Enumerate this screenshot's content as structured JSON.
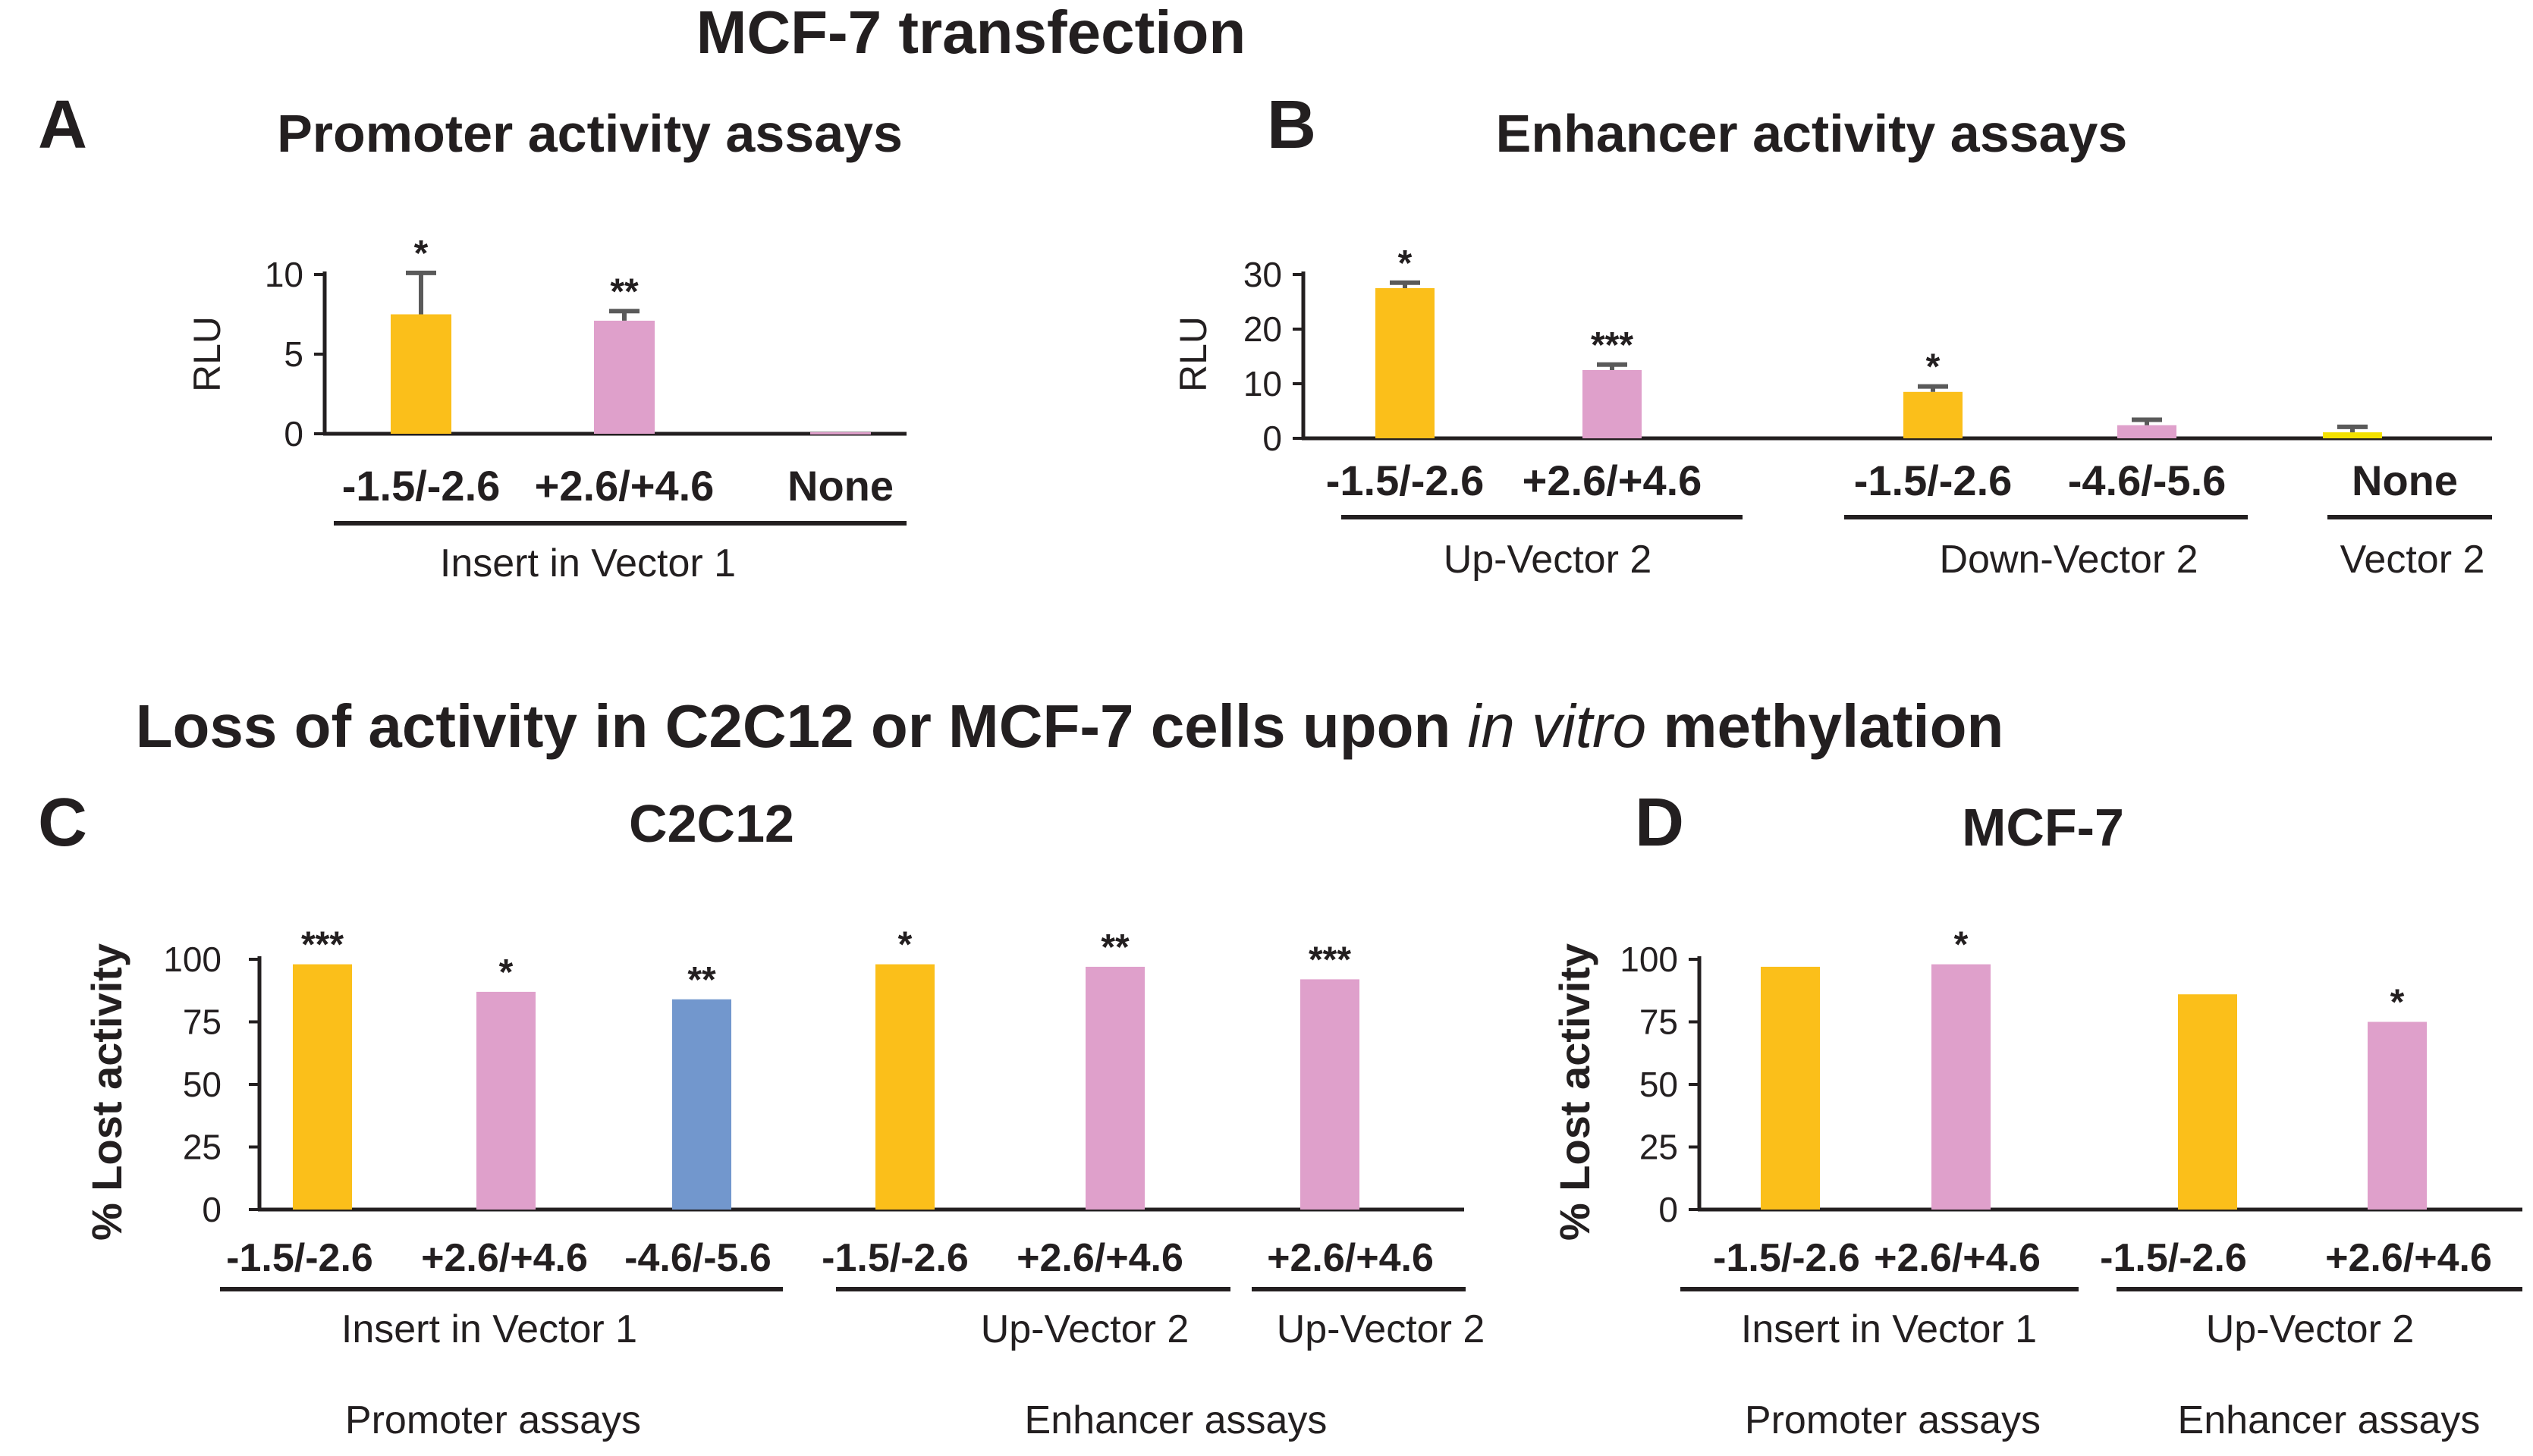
{
  "figure": {
    "title": "MCF-7 transfection",
    "subtitle_prefix": "Loss of activity in C2C12 or MCF-7 cells upon ",
    "subtitle_italic": "in vitro",
    "subtitle_suffix": " methylation"
  },
  "colors": {
    "orange": "#fbbf1a",
    "pink": "#dfa0cb",
    "blue": "#7297cd",
    "yellow": "#f3e100"
  },
  "chart_data": [
    {
      "id": "A",
      "type": "bar",
      "panel_letter": "A",
      "title": "Promoter activity assays",
      "ylabel": "RLU",
      "ylim": [
        0,
        10
      ],
      "yticks": [
        0,
        5,
        10
      ],
      "categories": [
        "-1.5/-2.6",
        "+2.6/+4.6",
        "None"
      ],
      "values": [
        7.5,
        7.1,
        0.1
      ],
      "errors": [
        2.6,
        0.6,
        0
      ],
      "significance": [
        "*",
        "**",
        ""
      ],
      "bar_colors": [
        "orange",
        "pink",
        "pink"
      ],
      "groups": [
        {
          "label": "Insert in Vector 1"
        }
      ]
    },
    {
      "id": "B",
      "type": "bar",
      "panel_letter": "B",
      "title": "Enhancer activity assays",
      "ylabel": "RLU",
      "ylim": [
        0,
        30
      ],
      "yticks": [
        0,
        10,
        20,
        30
      ],
      "categories": [
        "-1.5/-2.6",
        "+2.6/+4.6",
        "-1.5/-2.6",
        "-4.6/-5.6",
        "None"
      ],
      "values": [
        27.5,
        12.5,
        8.5,
        2.4,
        1.1
      ],
      "errors": [
        1.0,
        1.0,
        1.0,
        1.0,
        1.0
      ],
      "significance": [
        "*",
        "***",
        "*",
        "",
        ""
      ],
      "bar_colors": [
        "orange",
        "pink",
        "orange",
        "pink",
        "yellow"
      ],
      "groups": [
        {
          "label": "Up-Vector 2"
        },
        {
          "label": "Down-Vector 2"
        },
        {
          "label": "Vector 2"
        }
      ]
    },
    {
      "id": "C",
      "type": "bar",
      "panel_letter": "C",
      "title": "C2C12",
      "ylabel": "% Lost activity",
      "ylim": [
        0,
        100
      ],
      "yticks": [
        0,
        25,
        50,
        75,
        100
      ],
      "categories": [
        "-1.5/-2.6",
        "+2.6/+4.6",
        "-4.6/-5.6",
        "-1.5/-2.6",
        "+2.6/+4.6",
        "+2.6/+4.6"
      ],
      "values": [
        98,
        87,
        84,
        98,
        97,
        92
      ],
      "significance": [
        "***",
        "*",
        "**",
        "*",
        "**",
        "***"
      ],
      "bar_colors": [
        "orange",
        "pink",
        "blue",
        "orange",
        "pink",
        "pink"
      ],
      "groups": [
        {
          "label": "Insert in Vector 1"
        },
        {
          "label": "Up-Vector 2"
        },
        {
          "label": "Up-Vector 2"
        }
      ],
      "assay_labels": [
        "Promoter assays",
        "Enhancer assays"
      ]
    },
    {
      "id": "D",
      "type": "bar",
      "panel_letter": "D",
      "title": "MCF-7",
      "ylabel": "% Lost activity",
      "ylim": [
        0,
        100
      ],
      "yticks": [
        0,
        25,
        50,
        75,
        100
      ],
      "categories": [
        "-1.5/-2.6",
        "+2.6/+4.6",
        "-1.5/-2.6",
        "+2.6/+4.6"
      ],
      "values": [
        97,
        98,
        86,
        75
      ],
      "significance": [
        "",
        "*",
        "",
        "*"
      ],
      "bar_colors": [
        "orange",
        "pink",
        "orange",
        "pink"
      ],
      "groups": [
        {
          "label": "Insert in Vector 1"
        },
        {
          "label": "Up-Vector 2"
        }
      ],
      "assay_labels": [
        "Promoter assays",
        "Enhancer assays"
      ]
    }
  ]
}
